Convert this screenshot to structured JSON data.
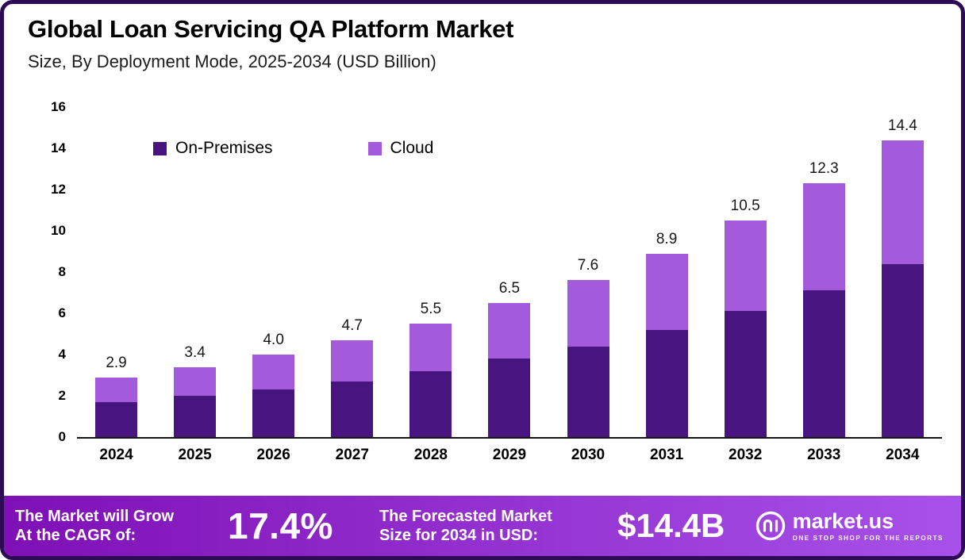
{
  "header": {
    "title": "Global Loan Servicing QA Platform Market",
    "subtitle": "Size, By Deployment Mode, 2025-2034 (USD Billion)"
  },
  "chart_data": {
    "type": "bar",
    "stacked": true,
    "title": "Global Loan Servicing QA Platform Market Size, By Deployment Mode, 2025-2034 (USD Billion)",
    "categories": [
      "2024",
      "2025",
      "2026",
      "2027",
      "2028",
      "2029",
      "2030",
      "2031",
      "2032",
      "2033",
      "2034"
    ],
    "series": [
      {
        "name": "On-Premises",
        "color": "#481480",
        "values": [
          1.7,
          2.0,
          2.3,
          2.7,
          3.2,
          3.8,
          4.4,
          5.2,
          6.1,
          7.1,
          8.4
        ]
      },
      {
        "name": "Cloud",
        "color": "#A35BDB",
        "values": [
          1.2,
          1.4,
          1.7,
          2.0,
          2.3,
          2.7,
          3.2,
          3.7,
          4.4,
          5.2,
          6.0
        ]
      }
    ],
    "totals": [
      2.9,
      3.4,
      4.0,
      4.7,
      5.5,
      6.5,
      7.6,
      8.9,
      10.5,
      12.3,
      14.4
    ],
    "ylim": [
      0,
      16
    ],
    "ytick_step": 2,
    "grid": false,
    "legend_position": "top-left"
  },
  "footer": {
    "cagr_label": "The Market will Grow\nAt the CAGR of:",
    "cagr_value": "17.4%",
    "forecast_label": "The Forecasted Market\nSize for 2034 in USD:",
    "forecast_value": "$14.4B",
    "brand": "market.us",
    "brand_tagline": "ONE STOP SHOP FOR THE REPORTS"
  },
  "colors": {
    "border": "#2e0b55",
    "onprem": "#481480",
    "cloud": "#A35BDB",
    "axis": "#141414",
    "footer_start": "#7e10b5",
    "footer_end": "#a851ea"
  }
}
